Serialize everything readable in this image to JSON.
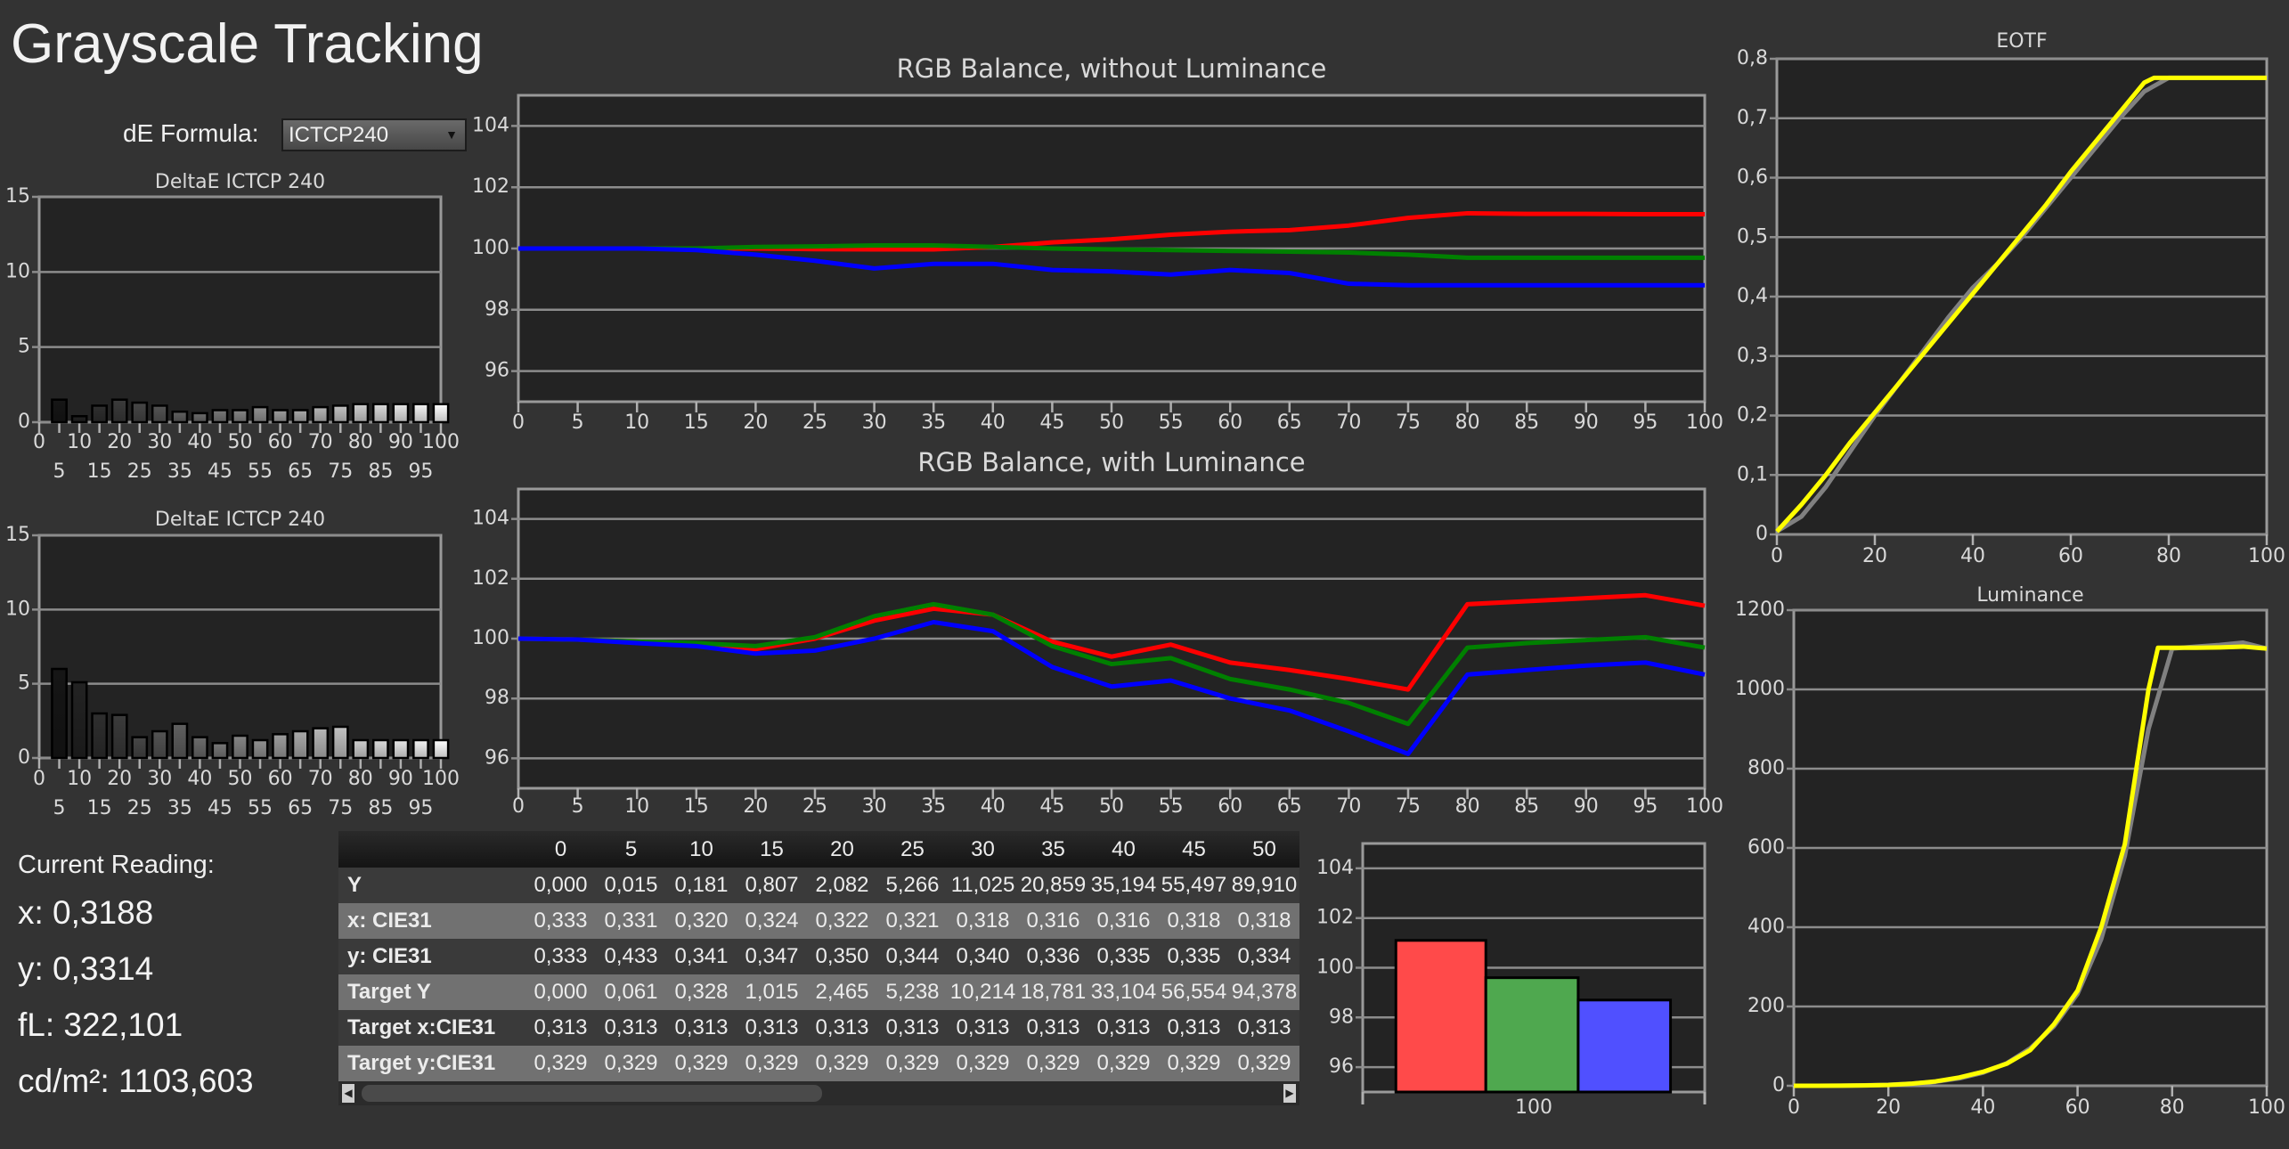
{
  "header": {
    "title": "Grayscale Tracking",
    "de_formula_label": "dE Formula:",
    "de_formula_value": "ICTCP240"
  },
  "current_reading": {
    "label": "Current Reading:",
    "x": "x: 0,3188",
    "y": "y: 0,3314",
    "fl": "fL: 322,101",
    "cdm2": "cd/m²: 1103,603"
  },
  "colors": {
    "red": "#ff0000",
    "green": "#008000",
    "blue": "#0000ff",
    "measured": "#ffff00",
    "target": "#808080",
    "plot_bg": "#222222",
    "page_bg": "#333333"
  },
  "table": {
    "columns": [
      "0",
      "5",
      "10",
      "15",
      "20",
      "25",
      "30",
      "35",
      "40",
      "45",
      "50"
    ],
    "rows": [
      {
        "label": "Y",
        "values": [
          "0,000",
          "0,015",
          "0,181",
          "0,807",
          "2,082",
          "5,266",
          "11,025",
          "20,859",
          "35,194",
          "55,497",
          "89,910"
        ]
      },
      {
        "label": "x: CIE31",
        "values": [
          "0,333",
          "0,331",
          "0,320",
          "0,324",
          "0,322",
          "0,321",
          "0,318",
          "0,316",
          "0,316",
          "0,318",
          "0,318"
        ]
      },
      {
        "label": "y: CIE31",
        "values": [
          "0,333",
          "0,433",
          "0,341",
          "0,347",
          "0,350",
          "0,344",
          "0,340",
          "0,336",
          "0,335",
          "0,335",
          "0,334"
        ]
      },
      {
        "label": "Target Y",
        "values": [
          "0,000",
          "0,061",
          "0,328",
          "1,015",
          "2,465",
          "5,238",
          "10,214",
          "18,781",
          "33,104",
          "56,554",
          "94,378"
        ]
      },
      {
        "label": "Target x:CIE31",
        "values": [
          "0,313",
          "0,313",
          "0,313",
          "0,313",
          "0,313",
          "0,313",
          "0,313",
          "0,313",
          "0,313",
          "0,313",
          "0,313"
        ]
      },
      {
        "label": "Target y:CIE31",
        "values": [
          "0,329",
          "0,329",
          "0,329",
          "0,329",
          "0,329",
          "0,329",
          "0,329",
          "0,329",
          "0,329",
          "0,329",
          "0,329"
        ]
      }
    ],
    "scroll_left": "◀",
    "scroll_right": "▶"
  },
  "chart_data": [
    {
      "type": "bar",
      "title": "DeltaE ICTCP 240",
      "ylim": [
        0,
        15
      ],
      "yticks": [
        "0",
        "5",
        "10",
        "15"
      ],
      "ytick_values": [
        0,
        5,
        10,
        15
      ],
      "xlim": [
        0,
        100
      ],
      "xtick_values": [
        0,
        5,
        10,
        15,
        20,
        25,
        30,
        35,
        40,
        45,
        50,
        55,
        60,
        65,
        70,
        75,
        80,
        85,
        90,
        95,
        100
      ],
      "xlabels_row1": [
        "0",
        "10",
        "20",
        "30",
        "40",
        "50",
        "60",
        "70",
        "80",
        "90",
        "100"
      ],
      "xlabels_row2": [
        "5",
        "15",
        "25",
        "35",
        "45",
        "55",
        "65",
        "75",
        "85",
        "95"
      ],
      "x": [
        5,
        10,
        15,
        20,
        25,
        30,
        35,
        40,
        45,
        50,
        55,
        60,
        65,
        70,
        75,
        80,
        85,
        90,
        95,
        100
      ],
      "values": [
        1.5,
        0.4,
        1.1,
        1.5,
        1.3,
        1.1,
        0.7,
        0.6,
        0.8,
        0.8,
        1.0,
        0.8,
        0.8,
        1.0,
        1.1,
        1.2,
        1.2,
        1.2,
        1.2,
        1.2
      ]
    },
    {
      "type": "bar",
      "title": "DeltaE ICTCP 240",
      "ylim": [
        0,
        15
      ],
      "yticks": [
        "0",
        "5",
        "10",
        "15"
      ],
      "ytick_values": [
        0,
        5,
        10,
        15
      ],
      "xlim": [
        0,
        100
      ],
      "xtick_values": [
        0,
        5,
        10,
        15,
        20,
        25,
        30,
        35,
        40,
        45,
        50,
        55,
        60,
        65,
        70,
        75,
        80,
        85,
        90,
        95,
        100
      ],
      "xlabels_row1": [
        "0",
        "10",
        "20",
        "30",
        "40",
        "50",
        "60",
        "70",
        "80",
        "90",
        "100"
      ],
      "xlabels_row2": [
        "5",
        "15",
        "25",
        "35",
        "45",
        "55",
        "65",
        "75",
        "85",
        "95"
      ],
      "x": [
        5,
        10,
        15,
        20,
        25,
        30,
        35,
        40,
        45,
        50,
        55,
        60,
        65,
        70,
        75,
        80,
        85,
        90,
        95,
        100
      ],
      "values": [
        6.0,
        5.1,
        3.0,
        2.9,
        1.4,
        1.8,
        2.3,
        1.4,
        1.0,
        1.5,
        1.2,
        1.6,
        1.8,
        2.0,
        2.1,
        1.2,
        1.2,
        1.2,
        1.2,
        1.2
      ]
    },
    {
      "type": "line",
      "title": "RGB Balance, without Luminance",
      "ylim": [
        95,
        105
      ],
      "yticks": [
        "96",
        "98",
        "100",
        "102",
        "104"
      ],
      "ytick_values": [
        96,
        98,
        100,
        102,
        104
      ],
      "xlim": [
        0,
        100
      ],
      "xtick_values": [
        0,
        5,
        10,
        15,
        20,
        25,
        30,
        35,
        40,
        45,
        50,
        55,
        60,
        65,
        70,
        75,
        80,
        85,
        90,
        95,
        100
      ],
      "xticks": [
        "0",
        "5",
        "10",
        "15",
        "20",
        "25",
        "30",
        "35",
        "40",
        "45",
        "50",
        "55",
        "60",
        "65",
        "70",
        "75",
        "80",
        "85",
        "90",
        "95",
        "100"
      ],
      "x": [
        0,
        5,
        10,
        15,
        20,
        25,
        30,
        35,
        40,
        45,
        50,
        55,
        60,
        65,
        70,
        75,
        80,
        85,
        90,
        95,
        100
      ],
      "series": [
        {
          "name": "Red",
          "color": "#ff0000",
          "values": [
            100,
            100,
            100,
            100,
            100,
            99.98,
            99.97,
            99.97,
            100.05,
            100.2,
            100.3,
            100.45,
            100.55,
            100.6,
            100.75,
            101.0,
            101.15,
            101.13,
            101.13,
            101.12,
            101.12
          ]
        },
        {
          "name": "Green",
          "color": "#008000",
          "values": [
            100,
            100,
            100,
            100,
            100.05,
            100.07,
            100.1,
            100.1,
            100.05,
            100,
            99.97,
            99.95,
            99.92,
            99.9,
            99.87,
            99.8,
            99.7,
            99.7,
            99.7,
            99.7,
            99.7
          ]
        },
        {
          "name": "Blue",
          "color": "#0000ff",
          "values": [
            100,
            100,
            100,
            99.95,
            99.8,
            99.6,
            99.35,
            99.5,
            99.5,
            99.3,
            99.25,
            99.15,
            99.3,
            99.2,
            98.85,
            98.8,
            98.8,
            98.8,
            98.8,
            98.8,
            98.8
          ]
        }
      ]
    },
    {
      "type": "line",
      "title": "RGB Balance, with Luminance",
      "ylim": [
        95,
        105
      ],
      "yticks": [
        "96",
        "98",
        "100",
        "102",
        "104"
      ],
      "ytick_values": [
        96,
        98,
        100,
        102,
        104
      ],
      "xlim": [
        0,
        100
      ],
      "xtick_values": [
        0,
        5,
        10,
        15,
        20,
        25,
        30,
        35,
        40,
        45,
        50,
        55,
        60,
        65,
        70,
        75,
        80,
        85,
        90,
        95,
        100
      ],
      "xticks": [
        "0",
        "5",
        "10",
        "15",
        "20",
        "25",
        "30",
        "35",
        "40",
        "45",
        "50",
        "55",
        "60",
        "65",
        "70",
        "75",
        "80",
        "85",
        "90",
        "95",
        "100"
      ],
      "x": [
        0,
        5,
        10,
        15,
        20,
        25,
        30,
        35,
        40,
        45,
        50,
        55,
        60,
        65,
        70,
        75,
        80,
        85,
        90,
        95,
        100
      ],
      "series": [
        {
          "name": "Red",
          "color": "#ff0000",
          "values": [
            100,
            99.97,
            99.9,
            99.8,
            99.65,
            100,
            100.6,
            101.0,
            100.8,
            99.9,
            99.4,
            99.8,
            99.2,
            98.95,
            98.65,
            98.3,
            101.15,
            101.25,
            101.35,
            101.45,
            101.1
          ]
        },
        {
          "name": "Green",
          "color": "#008000",
          "values": [
            100,
            99.97,
            99.9,
            99.85,
            99.75,
            100.05,
            100.75,
            101.15,
            100.8,
            99.75,
            99.15,
            99.35,
            98.65,
            98.3,
            97.85,
            97.15,
            99.7,
            99.85,
            99.95,
            100.05,
            99.7
          ]
        },
        {
          "name": "Blue",
          "color": "#0000ff",
          "values": [
            100,
            99.97,
            99.85,
            99.75,
            99.5,
            99.6,
            100,
            100.55,
            100.25,
            99.05,
            98.4,
            98.6,
            98.0,
            97.6,
            96.9,
            96.15,
            98.8,
            98.95,
            99.1,
            99.2,
            98.8
          ]
        }
      ]
    },
    {
      "type": "bar",
      "title": "",
      "categories": [
        "100"
      ],
      "ylim": [
        95,
        105
      ],
      "yticks": [
        "96",
        "98",
        "100",
        "102",
        "104"
      ],
      "ytick_values": [
        96,
        98,
        100,
        102,
        104
      ],
      "series": [
        {
          "name": "Red",
          "color": "#ff4a4a",
          "values": [
            101.1
          ]
        },
        {
          "name": "Green",
          "color": "#4fa84f",
          "values": [
            99.6
          ]
        },
        {
          "name": "Blue",
          "color": "#5050ff",
          "values": [
            98.7
          ]
        }
      ]
    },
    {
      "type": "line",
      "title": "EOTF",
      "ylim": [
        0,
        0.8
      ],
      "yticks": [
        "0",
        "0,1",
        "0,2",
        "0,3",
        "0,4",
        "0,5",
        "0,6",
        "0,7",
        "0,8"
      ],
      "ytick_values": [
        0,
        0.1,
        0.2,
        0.3,
        0.4,
        0.5,
        0.6,
        0.7,
        0.8
      ],
      "xlim": [
        0,
        100
      ],
      "xtick_values": [
        0,
        20,
        40,
        60,
        80,
        100
      ],
      "xticks": [
        "0",
        "20",
        "40",
        "60",
        "80",
        "100"
      ],
      "series": [
        {
          "name": "Target",
          "color": "#808080",
          "x": [
            0,
            5,
            10,
            15,
            20,
            25,
            30,
            35,
            40,
            45,
            50,
            55,
            60,
            65,
            70,
            75,
            80,
            85,
            90,
            95,
            100
          ],
          "values": [
            0.005,
            0.03,
            0.08,
            0.14,
            0.2,
            0.255,
            0.31,
            0.365,
            0.415,
            0.455,
            0.5,
            0.55,
            0.6,
            0.65,
            0.7,
            0.745,
            0.768,
            0.768,
            0.768,
            0.768,
            0.768
          ]
        },
        {
          "name": "Measured",
          "color": "#ffff00",
          "x": [
            0,
            5,
            10,
            15,
            20,
            25,
            30,
            35,
            40,
            45,
            50,
            55,
            60,
            65,
            70,
            75,
            77,
            80,
            85,
            90,
            95,
            100
          ],
          "values": [
            0.005,
            0.05,
            0.1,
            0.155,
            0.205,
            0.255,
            0.305,
            0.355,
            0.405,
            0.455,
            0.505,
            0.555,
            0.61,
            0.66,
            0.71,
            0.76,
            0.768,
            0.768,
            0.768,
            0.768,
            0.768,
            0.768
          ]
        }
      ]
    },
    {
      "type": "line",
      "title": "Luminance",
      "ylim": [
        0,
        1200
      ],
      "yticks": [
        "0",
        "200",
        "400",
        "600",
        "800",
        "1000",
        "1200"
      ],
      "ytick_values": [
        0,
        200,
        400,
        600,
        800,
        1000,
        1200
      ],
      "xlim": [
        0,
        100
      ],
      "xtick_values": [
        0,
        20,
        40,
        60,
        80,
        100
      ],
      "xticks": [
        "0",
        "20",
        "40",
        "60",
        "80",
        "100"
      ],
      "series": [
        {
          "name": "Target",
          "color": "#808080",
          "x": [
            0,
            5,
            10,
            15,
            20,
            25,
            30,
            35,
            40,
            45,
            50,
            55,
            60,
            65,
            70,
            75,
            80,
            85,
            90,
            95,
            100
          ],
          "values": [
            0,
            0.061,
            0.328,
            1.015,
            2.465,
            5.238,
            10.214,
            18.781,
            33.104,
            56.554,
            94.378,
            150,
            232,
            370,
            580,
            900,
            1103,
            1108,
            1112,
            1118,
            1103
          ]
        },
        {
          "name": "Measured",
          "color": "#ffff00",
          "x": [
            0,
            5,
            10,
            15,
            20,
            25,
            30,
            35,
            40,
            45,
            50,
            55,
            60,
            65,
            70,
            75,
            77,
            80,
            85,
            90,
            95,
            100
          ],
          "values": [
            0,
            0.015,
            0.181,
            0.807,
            2.082,
            5.266,
            11.025,
            20.859,
            35.194,
            55.497,
            89.91,
            155,
            240,
            400,
            610,
            1000,
            1105,
            1105,
            1105,
            1106,
            1108,
            1103
          ]
        }
      ]
    }
  ]
}
